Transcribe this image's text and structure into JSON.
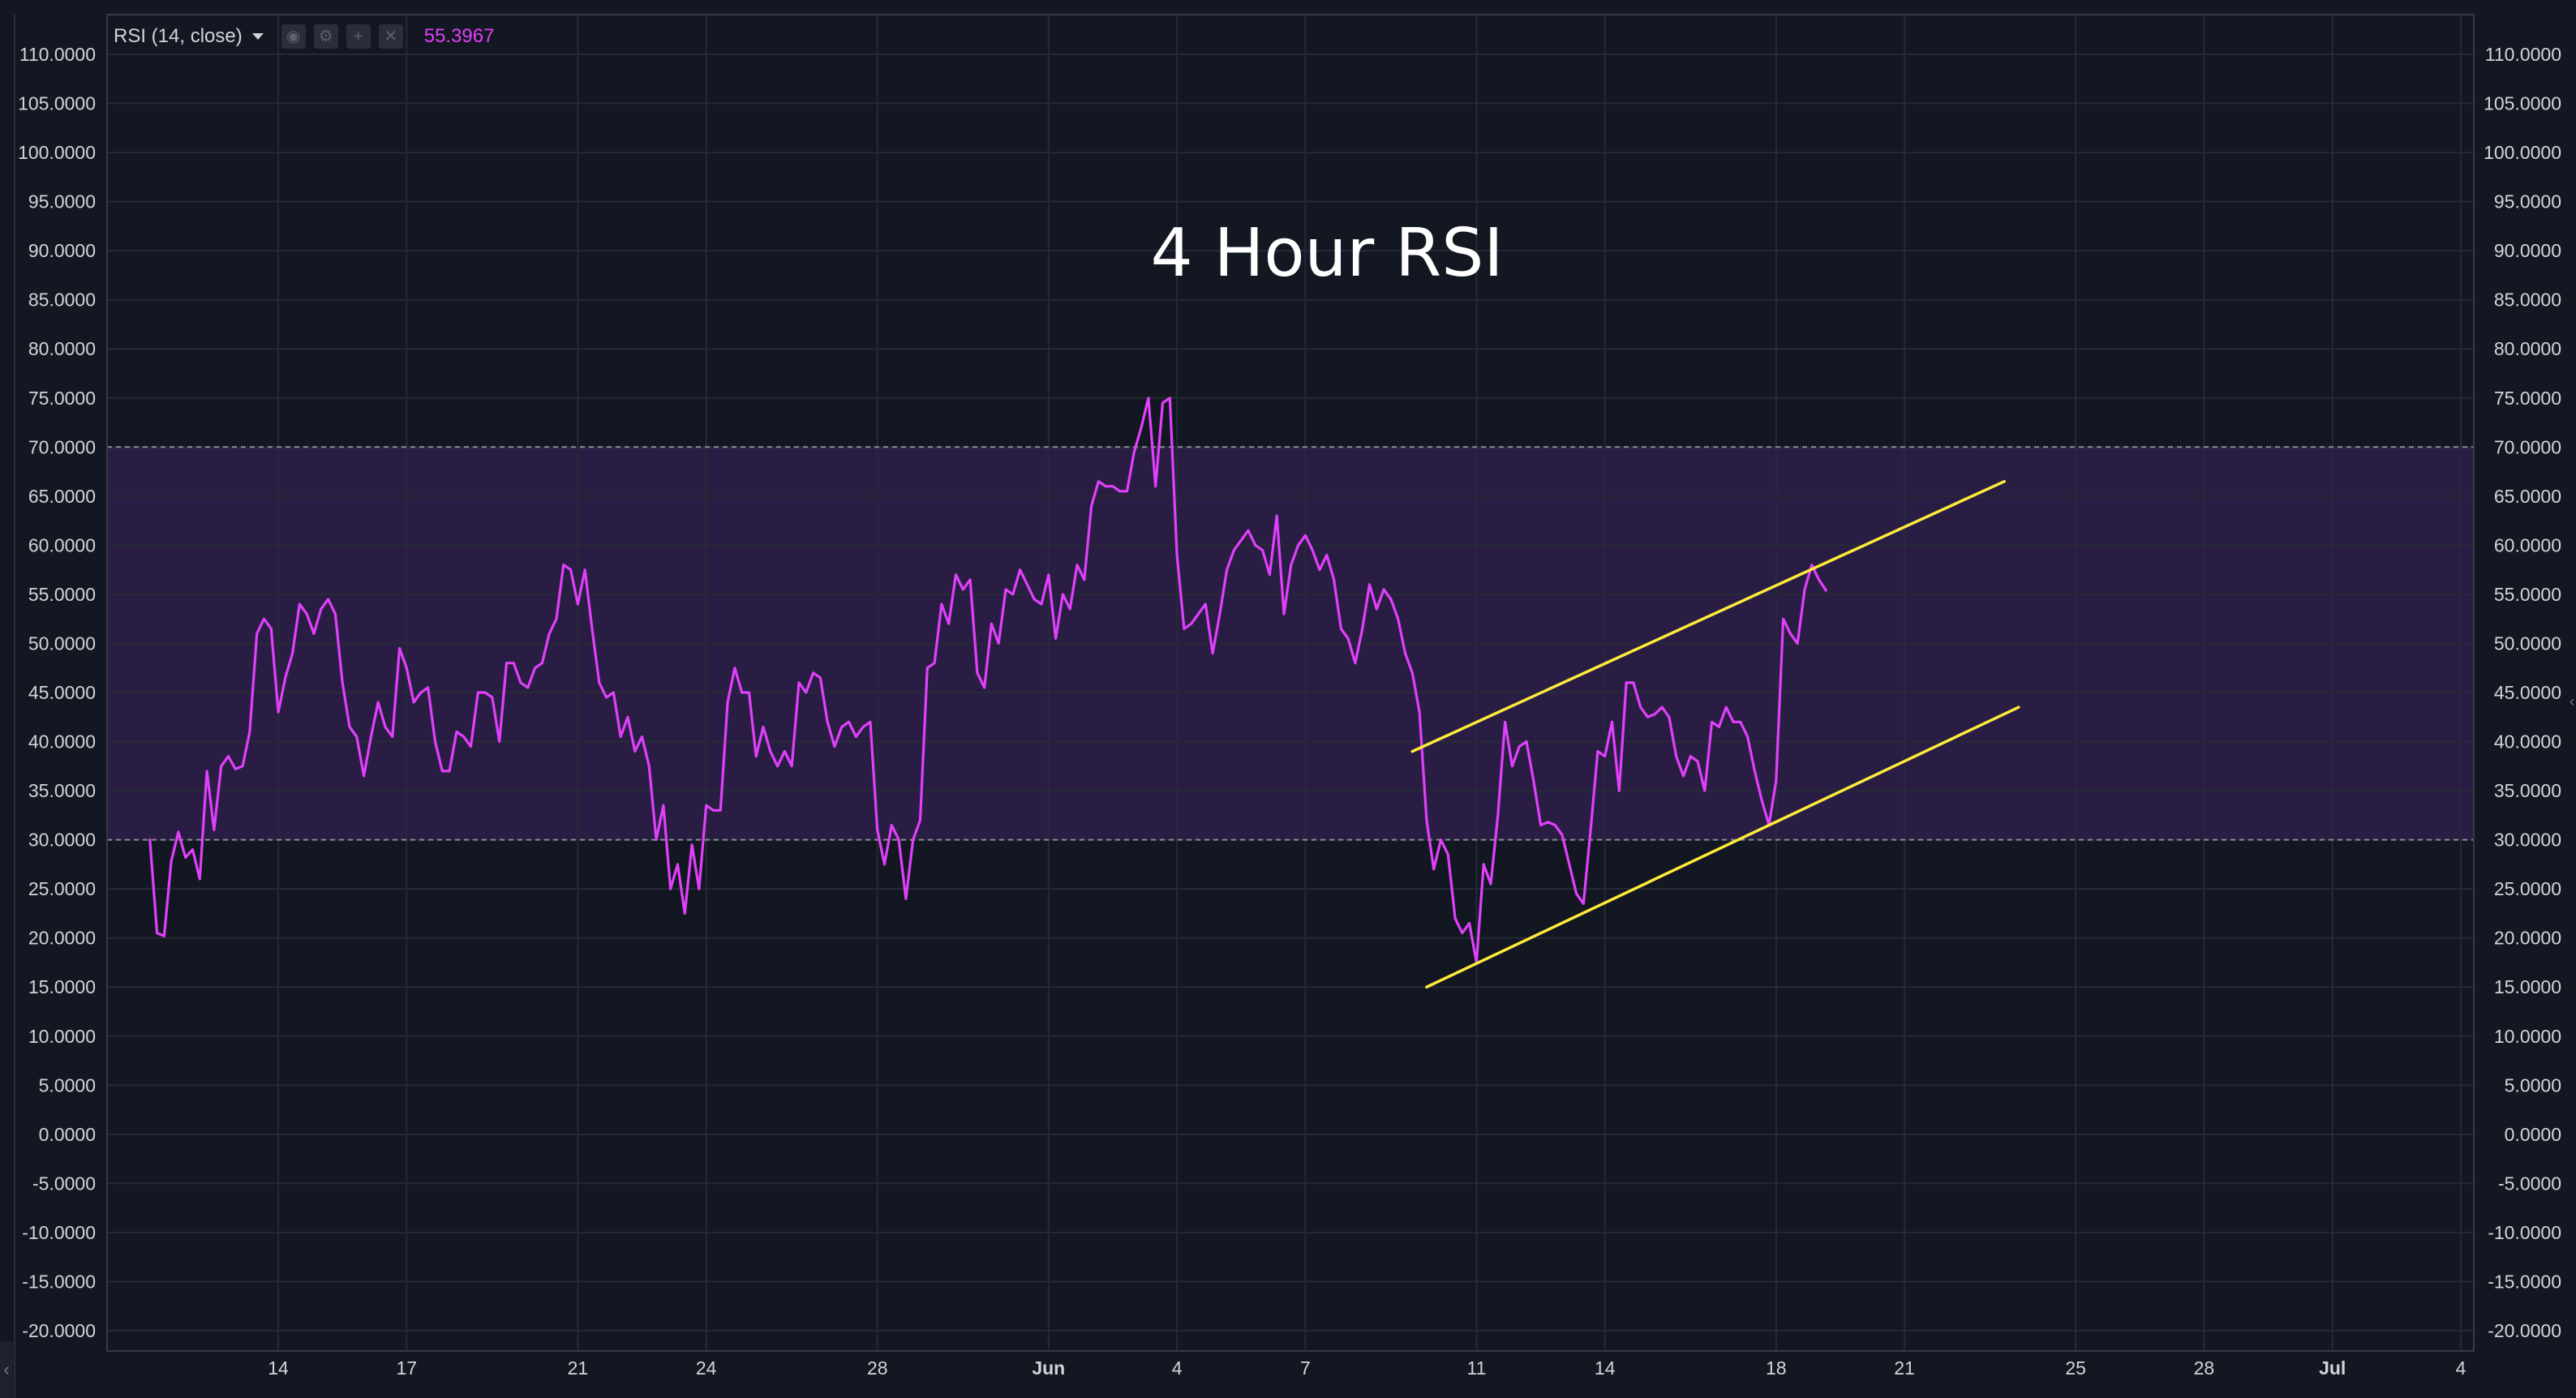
{
  "indicator": {
    "label": "RSI (14, close)",
    "current_value": "55.3967",
    "color": "#e040fb",
    "icons": [
      "eye-icon",
      "gear-icon",
      "plus-icon",
      "close-icon"
    ]
  },
  "colors": {
    "background": "#131722",
    "grid": "#262a36",
    "band_fill": "#2a1d44",
    "band_line": "#8a8d96",
    "axis_text": "#d1d4dc",
    "rsi_line": "#e040fb",
    "trendline": "#ffeb3b"
  },
  "chart_data": {
    "type": "line",
    "title": "4 Hour RSI",
    "y_range": [
      -20,
      110
    ],
    "y_ticks": [
      110,
      105,
      100,
      95,
      90,
      85,
      80,
      75,
      70,
      65,
      60,
      55,
      50,
      45,
      40,
      35,
      30,
      25,
      20,
      15,
      10,
      5,
      0,
      -5,
      -10,
      -15,
      -20
    ],
    "y_tick_labels": [
      "110.0000",
      "105.0000",
      "100.0000",
      "95.0000",
      "90.0000",
      "85.0000",
      "80.0000",
      "75.0000",
      "70.0000",
      "65.0000",
      "60.0000",
      "55.0000",
      "50.0000",
      "45.0000",
      "40.0000",
      "35.0000",
      "30.0000",
      "25.0000",
      "20.0000",
      "15.0000",
      "10.0000",
      "5.0000",
      "0.0000",
      "-5.0000",
      "-10.0000",
      "-15.0000",
      "-20.0000"
    ],
    "x_range": [
      "May 10",
      "Jul 4"
    ],
    "x_ticks": [
      {
        "date": "May 14",
        "label": "14"
      },
      {
        "date": "May 17",
        "label": "17"
      },
      {
        "date": "May 21",
        "label": "21"
      },
      {
        "date": "May 24",
        "label": "24"
      },
      {
        "date": "May 28",
        "label": "28"
      },
      {
        "date": "Jun 1",
        "label": "Jun",
        "bold": true
      },
      {
        "date": "Jun 4",
        "label": "4"
      },
      {
        "date": "Jun 7",
        "label": "7"
      },
      {
        "date": "Jun 11",
        "label": "11"
      },
      {
        "date": "Jun 14",
        "label": "14"
      },
      {
        "date": "Jun 18",
        "label": "18"
      },
      {
        "date": "Jun 21",
        "label": "21"
      },
      {
        "date": "Jun 25",
        "label": "25"
      },
      {
        "date": "Jun 28",
        "label": "28"
      },
      {
        "date": "Jul 1",
        "label": "Jul",
        "bold": true
      },
      {
        "date": "Jul 4",
        "label": "4"
      }
    ],
    "band": {
      "lower": 30,
      "upper": 70
    },
    "series": [
      {
        "points": [
          [
            "May 11 00:00",
            30.0
          ],
          [
            "May 11 04:00",
            20.5
          ],
          [
            "May 11 08:00",
            20.2
          ],
          [
            "May 11 12:00",
            27.8
          ],
          [
            "May 11 16:00",
            30.8
          ],
          [
            "May 11 20:00",
            28.2
          ],
          [
            "May 12 00:00",
            29.0
          ],
          [
            "May 12 04:00",
            26.0
          ],
          [
            "May 12 08:00",
            37.0
          ],
          [
            "May 12 12:00",
            31.0
          ],
          [
            "May 12 16:00",
            37.5
          ],
          [
            "May 12 20:00",
            38.5
          ],
          [
            "May 13 00:00",
            37.2
          ],
          [
            "May 13 04:00",
            37.5
          ],
          [
            "May 13 08:00",
            41.0
          ],
          [
            "May 13 12:00",
            51.0
          ],
          [
            "May 13 16:00",
            52.5
          ],
          [
            "May 13 20:00",
            51.5
          ],
          [
            "May 14 00:00",
            43.0
          ],
          [
            "May 14 04:00",
            46.5
          ],
          [
            "May 14 08:00",
            49.0
          ],
          [
            "May 14 12:00",
            54.0
          ],
          [
            "May 14 16:00",
            53.0
          ],
          [
            "May 14 20:00",
            51.0
          ],
          [
            "May 15 00:00",
            53.5
          ],
          [
            "May 15 04:00",
            54.5
          ],
          [
            "May 15 08:00",
            53.0
          ],
          [
            "May 15 12:00",
            46.0
          ],
          [
            "May 15 16:00",
            41.5
          ],
          [
            "May 15 20:00",
            40.5
          ],
          [
            "May 16 00:00",
            36.5
          ],
          [
            "May 16 04:00",
            40.5
          ],
          [
            "May 16 08:00",
            44.0
          ],
          [
            "May 16 12:00",
            41.5
          ],
          [
            "May 16 16:00",
            40.5
          ],
          [
            "May 16 20:00",
            49.5
          ],
          [
            "May 17 00:00",
            47.5
          ],
          [
            "May 17 04:00",
            44.0
          ],
          [
            "May 17 08:00",
            45.0
          ],
          [
            "May 17 12:00",
            45.5
          ],
          [
            "May 17 16:00",
            40.0
          ],
          [
            "May 17 20:00",
            37.0
          ],
          [
            "May 18 00:00",
            37.0
          ],
          [
            "May 18 04:00",
            41.0
          ],
          [
            "May 18 08:00",
            40.5
          ],
          [
            "May 18 12:00",
            39.5
          ],
          [
            "May 18 16:00",
            45.0
          ],
          [
            "May 18 20:00",
            45.0
          ],
          [
            "May 19 00:00",
            44.5
          ],
          [
            "May 19 04:00",
            40.0
          ],
          [
            "May 19 08:00",
            48.0
          ],
          [
            "May 19 12:00",
            48.0
          ],
          [
            "May 19 16:00",
            46.0
          ],
          [
            "May 19 20:00",
            45.5
          ],
          [
            "May 20 00:00",
            47.5
          ],
          [
            "May 20 04:00",
            48.0
          ],
          [
            "May 20 08:00",
            51.0
          ],
          [
            "May 20 12:00",
            52.5
          ],
          [
            "May 20 16:00",
            58.0
          ],
          [
            "May 20 20:00",
            57.5
          ],
          [
            "May 21 00:00",
            54.0
          ],
          [
            "May 21 04:00",
            57.5
          ],
          [
            "May 21 08:00",
            51.5
          ],
          [
            "May 21 12:00",
            46.0
          ],
          [
            "May 21 16:00",
            44.5
          ],
          [
            "May 21 20:00",
            45.0
          ],
          [
            "May 22 00:00",
            40.5
          ],
          [
            "May 22 04:00",
            42.5
          ],
          [
            "May 22 08:00",
            39.0
          ],
          [
            "May 22 12:00",
            40.5
          ],
          [
            "May 22 16:00",
            37.5
          ],
          [
            "May 22 20:00",
            30.0
          ],
          [
            "May 23 00:00",
            33.5
          ],
          [
            "May 23 04:00",
            25.0
          ],
          [
            "May 23 08:00",
            27.5
          ],
          [
            "May 23 12:00",
            22.5
          ],
          [
            "May 23 16:00",
            29.5
          ],
          [
            "May 23 20:00",
            25.0
          ],
          [
            "May 24 00:00",
            33.5
          ],
          [
            "May 24 04:00",
            33.0
          ],
          [
            "May 24 08:00",
            33.0
          ],
          [
            "May 24 12:00",
            44.0
          ],
          [
            "May 24 16:00",
            47.5
          ],
          [
            "May 24 20:00",
            45.0
          ],
          [
            "May 25 00:00",
            45.0
          ],
          [
            "May 25 04:00",
            38.5
          ],
          [
            "May 25 08:00",
            41.5
          ],
          [
            "May 25 12:00",
            39.0
          ],
          [
            "May 25 16:00",
            37.5
          ],
          [
            "May 25 20:00",
            39.0
          ],
          [
            "May 26 00:00",
            37.5
          ],
          [
            "May 26 04:00",
            46.0
          ],
          [
            "May 26 08:00",
            45.0
          ],
          [
            "May 26 12:00",
            47.0
          ],
          [
            "May 26 16:00",
            46.5
          ],
          [
            "May 26 20:00",
            42.0
          ],
          [
            "May 27 00:00",
            39.5
          ],
          [
            "May 27 04:00",
            41.5
          ],
          [
            "May 27 08:00",
            42.0
          ],
          [
            "May 27 12:00",
            40.5
          ],
          [
            "May 27 16:00",
            41.5
          ],
          [
            "May 27 20:00",
            42.0
          ],
          [
            "May 28 00:00",
            31.0
          ],
          [
            "May 28 04:00",
            27.5
          ],
          [
            "May 28 08:00",
            31.5
          ],
          [
            "May 28 12:00",
            30.0
          ],
          [
            "May 28 16:00",
            24.0
          ],
          [
            "May 28 20:00",
            30.0
          ],
          [
            "May 29 00:00",
            32.0
          ],
          [
            "May 29 04:00",
            47.5
          ],
          [
            "May 29 08:00",
            48.0
          ],
          [
            "May 29 12:00",
            54.0
          ],
          [
            "May 29 16:00",
            52.0
          ],
          [
            "May 29 20:00",
            57.0
          ],
          [
            "May 30 00:00",
            55.5
          ],
          [
            "May 30 04:00",
            56.5
          ],
          [
            "May 30 08:00",
            47.0
          ],
          [
            "May 30 12:00",
            45.5
          ],
          [
            "May 30 16:00",
            52.0
          ],
          [
            "May 30 20:00",
            50.0
          ],
          [
            "May 31 00:00",
            55.5
          ],
          [
            "May 31 04:00",
            55.0
          ],
          [
            "May 31 08:00",
            57.5
          ],
          [
            "May 31 12:00",
            56.0
          ],
          [
            "May 31 16:00",
            54.5
          ],
          [
            "May 31 20:00",
            54.0
          ],
          [
            "Jun 1 00:00",
            57.0
          ],
          [
            "Jun 1 04:00",
            50.5
          ],
          [
            "Jun 1 08:00",
            55.0
          ],
          [
            "Jun 1 12:00",
            53.5
          ],
          [
            "Jun 1 16:00",
            58.0
          ],
          [
            "Jun 1 20:00",
            56.5
          ],
          [
            "Jun 2 00:00",
            64.0
          ],
          [
            "Jun 2 04:00",
            66.5
          ],
          [
            "Jun 2 08:00",
            66.0
          ],
          [
            "Jun 2 12:00",
            66.0
          ],
          [
            "Jun 2 16:00",
            65.5
          ],
          [
            "Jun 2 20:00",
            65.5
          ],
          [
            "Jun 3 00:00",
            69.5
          ],
          [
            "Jun 3 04:00",
            72.0
          ],
          [
            "Jun 3 08:00",
            75.0
          ],
          [
            "Jun 3 12:00",
            66.0
          ],
          [
            "Jun 3 16:00",
            74.5
          ],
          [
            "Jun 3 20:00",
            75.0
          ],
          [
            "Jun 4 00:00",
            59.0
          ],
          [
            "Jun 4 04:00",
            51.5
          ],
          [
            "Jun 4 08:00",
            52.0
          ],
          [
            "Jun 4 12:00",
            53.0
          ],
          [
            "Jun 4 16:00",
            54.0
          ],
          [
            "Jun 4 20:00",
            49.0
          ],
          [
            "Jun 5 00:00",
            53.0
          ],
          [
            "Jun 5 04:00",
            57.5
          ],
          [
            "Jun 5 08:00",
            59.5
          ],
          [
            "Jun 5 12:00",
            60.5
          ],
          [
            "Jun 5 16:00",
            61.5
          ],
          [
            "Jun 5 20:00",
            60.0
          ],
          [
            "Jun 6 00:00",
            59.5
          ],
          [
            "Jun 6 04:00",
            57.0
          ],
          [
            "Jun 6 08:00",
            63.0
          ],
          [
            "Jun 6 12:00",
            53.0
          ],
          [
            "Jun 6 16:00",
            58.0
          ],
          [
            "Jun 6 20:00",
            60.0
          ],
          [
            "Jun 7 00:00",
            61.0
          ],
          [
            "Jun 7 04:00",
            59.5
          ],
          [
            "Jun 7 08:00",
            57.5
          ],
          [
            "Jun 7 12:00",
            59.0
          ],
          [
            "Jun 7 16:00",
            56.5
          ],
          [
            "Jun 7 20:00",
            51.5
          ],
          [
            "Jun 8 00:00",
            50.5
          ],
          [
            "Jun 8 04:00",
            48.0
          ],
          [
            "Jun 8 08:00",
            51.5
          ],
          [
            "Jun 8 12:00",
            56.0
          ],
          [
            "Jun 8 16:00",
            53.5
          ],
          [
            "Jun 8 20:00",
            55.5
          ],
          [
            "Jun 9 00:00",
            54.5
          ],
          [
            "Jun 9 04:00",
            52.5
          ],
          [
            "Jun 9 08:00",
            49.0
          ],
          [
            "Jun 9 12:00",
            47.0
          ],
          [
            "Jun 9 16:00",
            43.0
          ],
          [
            "Jun 9 20:00",
            32.0
          ],
          [
            "Jun 10 00:00",
            27.0
          ],
          [
            "Jun 10 04:00",
            30.0
          ],
          [
            "Jun 10 08:00",
            28.5
          ],
          [
            "Jun 10 12:00",
            22.0
          ],
          [
            "Jun 10 16:00",
            20.5
          ],
          [
            "Jun 10 20:00",
            21.5
          ],
          [
            "Jun 11 00:00",
            17.5
          ],
          [
            "Jun 11 04:00",
            27.5
          ],
          [
            "Jun 11 08:00",
            25.5
          ],
          [
            "Jun 11 12:00",
            32.5
          ],
          [
            "Jun 11 16:00",
            42.0
          ],
          [
            "Jun 11 20:00",
            37.5
          ],
          [
            "Jun 12 00:00",
            39.5
          ],
          [
            "Jun 12 04:00",
            40.0
          ],
          [
            "Jun 12 08:00",
            36.0
          ],
          [
            "Jun 12 12:00",
            31.5
          ],
          [
            "Jun 12 16:00",
            31.8
          ],
          [
            "Jun 12 20:00",
            31.5
          ],
          [
            "Jun 13 00:00",
            30.5
          ],
          [
            "Jun 13 04:00",
            27.5
          ],
          [
            "Jun 13 08:00",
            24.5
          ],
          [
            "Jun 13 12:00",
            23.5
          ],
          [
            "Jun 13 16:00",
            31.0
          ],
          [
            "Jun 13 20:00",
            39.0
          ],
          [
            "Jun 14 00:00",
            38.5
          ],
          [
            "Jun 14 04:00",
            42.0
          ],
          [
            "Jun 14 08:00",
            35.0
          ],
          [
            "Jun 14 12:00",
            46.0
          ],
          [
            "Jun 14 16:00",
            46.0
          ],
          [
            "Jun 14 20:00",
            43.5
          ],
          [
            "Jun 15 00:00",
            42.5
          ],
          [
            "Jun 15 04:00",
            42.8
          ],
          [
            "Jun 15 08:00",
            43.5
          ],
          [
            "Jun 15 12:00",
            42.5
          ],
          [
            "Jun 15 16:00",
            38.5
          ],
          [
            "Jun 15 20:00",
            36.5
          ],
          [
            "Jun 16 00:00",
            38.5
          ],
          [
            "Jun 16 04:00",
            38.0
          ],
          [
            "Jun 16 08:00",
            35.0
          ],
          [
            "Jun 16 12:00",
            42.0
          ],
          [
            "Jun 16 16:00",
            41.5
          ],
          [
            "Jun 16 20:00",
            43.5
          ],
          [
            "Jun 17 00:00",
            42.0
          ],
          [
            "Jun 17 04:00",
            42.0
          ],
          [
            "Jun 17 08:00",
            40.5
          ],
          [
            "Jun 17 12:00",
            37.0
          ],
          [
            "Jun 17 16:00",
            34.0
          ],
          [
            "Jun 17 20:00",
            31.5
          ],
          [
            "Jun 18 00:00",
            36.0
          ],
          [
            "Jun 18 04:00",
            52.5
          ],
          [
            "Jun 18 08:00",
            51.0
          ],
          [
            "Jun 18 12:00",
            50.0
          ],
          [
            "Jun 18 16:00",
            55.5
          ],
          [
            "Jun 18 20:00",
            58.0
          ],
          [
            "Jun 19 00:00",
            56.5
          ],
          [
            "Jun 19 04:00",
            55.4
          ]
        ]
      }
    ],
    "trendlines": [
      {
        "start": [
          "Jun 9 12:00",
          39.0
        ],
        "end": [
          "Jun 23 08:00",
          66.5
        ]
      },
      {
        "start": [
          "Jun 9 20:00",
          15.0
        ],
        "end": [
          "Jun 23 16:00",
          43.5
        ]
      }
    ]
  }
}
